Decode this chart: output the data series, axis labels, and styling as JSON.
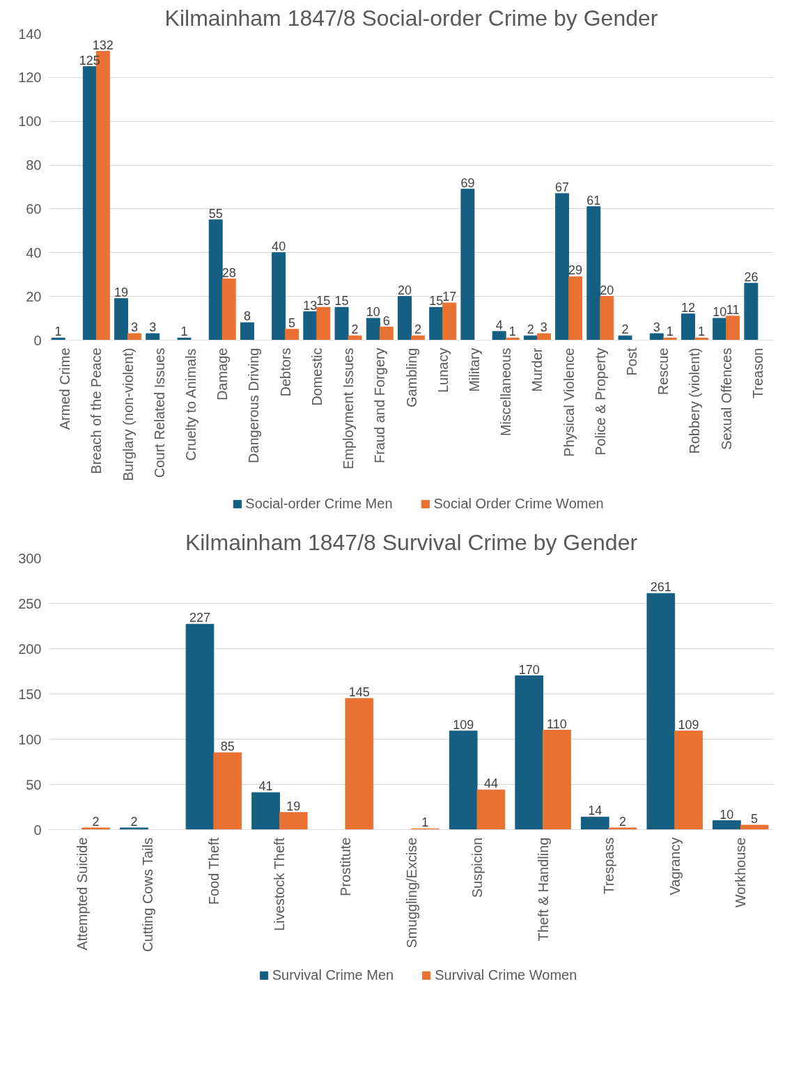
{
  "chart_data": [
    {
      "type": "bar",
      "title": "Kilmainham 1847/8 Social-order Crime by Gender",
      "categories": [
        "Armed Crime",
        "Breach of the Peace",
        "Burglary (non-violent)",
        "Court Related Issues",
        "Cruelty to Animals",
        "Damage",
        "Dangerous Driving",
        "Debtors",
        "Domestic",
        "Employment Issues",
        "Fraud and Forgery",
        "Gambling",
        "Lunacy",
        "Military",
        "Miscellaneous",
        "Murder",
        "Physical Violence",
        "Police & Property",
        "Post",
        "Rescue",
        "Robbery (violent)",
        "Sexual Offences",
        "Treason"
      ],
      "series": [
        {
          "name": "Social-order Crime Men",
          "color": "#156082",
          "values": [
            1,
            125,
            19,
            3,
            1,
            55,
            8,
            40,
            13,
            15,
            10,
            20,
            15,
            69,
            4,
            2,
            67,
            61,
            2,
            3,
            12,
            10,
            26
          ]
        },
        {
          "name": "Social Order Crime Women",
          "color": "#e97132",
          "values": [
            null,
            132,
            3,
            null,
            null,
            28,
            null,
            5,
            15,
            2,
            6,
            2,
            17,
            null,
            1,
            3,
            29,
            20,
            null,
            1,
            1,
            11,
            null
          ]
        }
      ],
      "ylim": [
        0,
        140
      ],
      "yticks": [
        0,
        20,
        40,
        60,
        80,
        100,
        120,
        140
      ],
      "grid": "y",
      "legend": "bottom",
      "data_labels": true
    },
    {
      "type": "bar",
      "title": "Kilmainham 1847/8 Survival Crime by Gender",
      "categories": [
        "Attempted Suicide",
        "Cutting Cows Tails",
        "Food Theft",
        "Livestock Theft",
        "Prostitute",
        "Smuggling/Excise",
        "Suspicion",
        "Theft & Handling",
        "Trespass",
        "Vagrancy",
        "Workhouse"
      ],
      "series": [
        {
          "name": "Survival Crime Men",
          "color": "#156082",
          "values": [
            null,
            2,
            227,
            41,
            null,
            null,
            109,
            170,
            14,
            261,
            10
          ]
        },
        {
          "name": "Survival Crime Women",
          "color": "#e97132",
          "values": [
            2,
            null,
            85,
            19,
            145,
            1,
            44,
            110,
            2,
            109,
            5
          ]
        }
      ],
      "ylim": [
        0,
        300
      ],
      "yticks": [
        0,
        50,
        100,
        150,
        200,
        250,
        300
      ],
      "grid": "y",
      "legend": "bottom",
      "data_labels": true
    }
  ]
}
